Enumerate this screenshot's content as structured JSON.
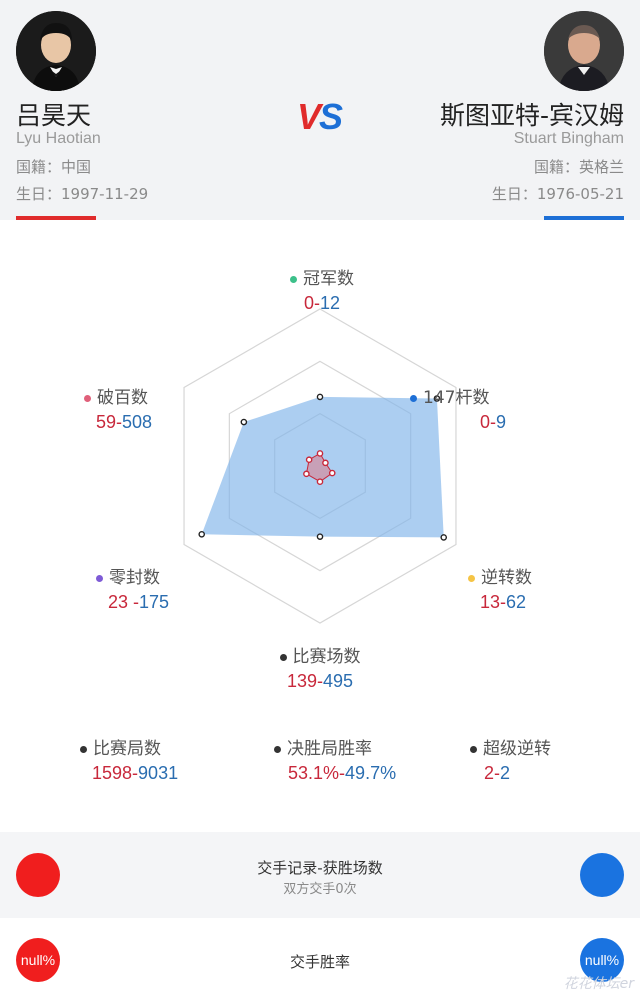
{
  "players": {
    "left": {
      "name_cn": "吕昊天",
      "name_en": "Lyu Haotian",
      "nationality": "国籍：中国",
      "birthday": "生日：1997-11-29",
      "color": "#e02b2b"
    },
    "right": {
      "name_cn": "斯图亚特-宾汉姆",
      "name_en": "Stuart Bingham",
      "nationality": "国籍：英格兰",
      "birthday": "生日：1976-05-21",
      "color": "#1d6fd6"
    }
  },
  "vs": {
    "v": "V",
    "s": "S"
  },
  "radar": {
    "stats": [
      {
        "label": "冠军数",
        "left": "0",
        "right": "12",
        "dot": "#3cc08a"
      },
      {
        "label": "147杆数",
        "left": "0",
        "right": "9",
        "dot": "#1d6fd6"
      },
      {
        "label": "逆转数",
        "left": "13",
        "right": "62",
        "dot": "#f5c445"
      },
      {
        "label": "比赛场数",
        "left": "139",
        "right": "495",
        "dot": "#333333"
      },
      {
        "label": "零封数",
        "left": "23",
        "right": "175",
        "dot": "#7e5bd6"
      },
      {
        "label": "破百数",
        "left": "59",
        "right": "508",
        "dot": "#e0607a"
      }
    ],
    "left_levels": [
      0.08,
      0.04,
      0.09,
      0.1,
      0.1,
      0.08
    ],
    "right_levels": [
      0.44,
      0.86,
      0.91,
      0.45,
      0.87,
      0.56
    ]
  },
  "extra_stats": [
    {
      "label": "比赛局数",
      "left": "1598",
      "right": "9031"
    },
    {
      "label": "决胜局胜率",
      "left": "53.1%",
      "right": "49.7%"
    },
    {
      "label": "超级逆转",
      "left": "2",
      "right": "2"
    }
  ],
  "h2h": {
    "title": "交手记录-获胜场数",
    "subtitle": "双方交手0次"
  },
  "rate": {
    "title": "交手胜率",
    "left": "null%",
    "right": "null%"
  },
  "watermark": "花花体坛er"
}
